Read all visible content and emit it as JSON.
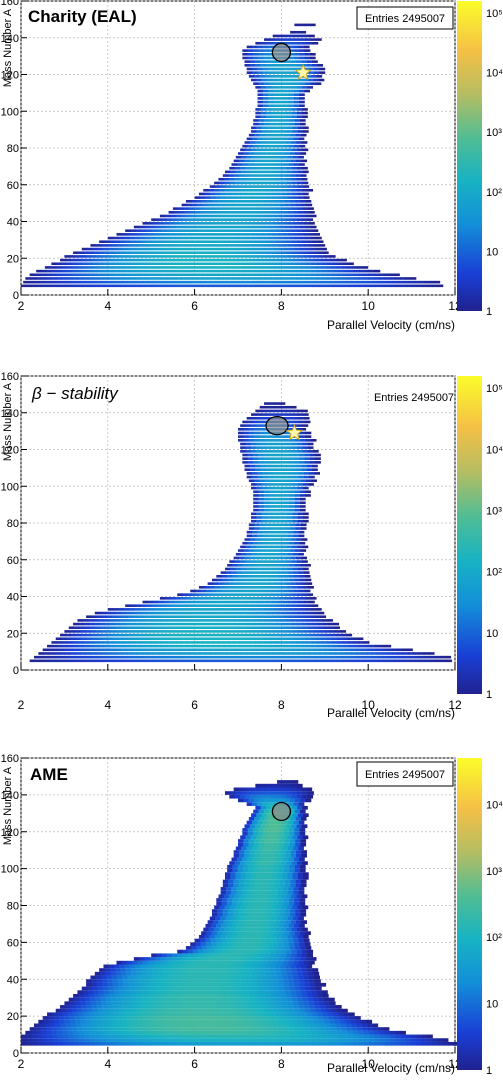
{
  "chart_data": [
    {
      "type": "heatmap",
      "title": "Charity (EAL)",
      "title_italic": false,
      "stats_label": "Entries 2495007",
      "xlabel": "Parallel Velocity (cm/ns)",
      "ylabel": "Mass Number A",
      "xlim": [
        2,
        12
      ],
      "ylim": [
        0,
        160
      ],
      "x_ticks": [
        "2",
        "4",
        "6",
        "8",
        "10",
        "12"
      ],
      "y_ticks": [
        "0",
        "20",
        "40",
        "60",
        "80",
        "100",
        "120",
        "140",
        "160"
      ],
      "z_scale": "log",
      "z_ticks": [
        "1",
        "10",
        "10²",
        "10³",
        "10⁴",
        "10⁵"
      ],
      "grid": true,
      "circle_marker": {
        "x": 8.0,
        "y": 132
      },
      "star_marker": {
        "x": 8.5,
        "y": 121
      },
      "rows": [
        [
          5,
          2.0,
          11.6,
          0.9
        ],
        [
          7,
          2.05,
          11.6,
          1.4
        ],
        [
          9,
          2.1,
          11.0,
          1.8
        ],
        [
          11,
          2.2,
          10.6,
          1.9
        ],
        [
          13,
          2.35,
          10.2,
          2.1
        ],
        [
          15,
          2.55,
          9.9,
          2.2
        ],
        [
          17,
          2.7,
          9.6,
          2.2
        ],
        [
          19,
          2.9,
          9.4,
          2.2
        ],
        [
          21,
          3.0,
          9.2,
          2.2
        ],
        [
          23,
          3.2,
          9.0,
          2.1
        ],
        [
          25,
          3.4,
          8.95,
          2.1
        ],
        [
          27,
          3.6,
          8.9,
          2.0
        ],
        [
          29,
          3.8,
          8.85,
          2.0
        ],
        [
          31,
          4.0,
          8.8,
          1.9
        ],
        [
          33,
          4.2,
          8.8,
          1.9
        ],
        [
          35,
          4.4,
          8.75,
          1.9
        ],
        [
          37,
          4.6,
          8.75,
          1.9
        ],
        [
          39,
          4.8,
          8.7,
          1.9
        ],
        [
          41,
          5.0,
          8.7,
          1.9
        ],
        [
          43,
          5.2,
          8.7,
          1.9
        ],
        [
          45,
          5.4,
          8.7,
          1.9
        ],
        [
          47,
          5.5,
          8.65,
          1.9
        ],
        [
          49,
          5.7,
          8.65,
          1.9
        ],
        [
          51,
          5.8,
          8.65,
          1.9
        ],
        [
          53,
          6.0,
          8.6,
          1.9
        ],
        [
          55,
          6.1,
          8.6,
          1.9
        ],
        [
          57,
          6.2,
          8.6,
          1.9
        ],
        [
          59,
          6.35,
          8.6,
          1.9
        ],
        [
          61,
          6.45,
          8.6,
          1.9
        ],
        [
          63,
          6.55,
          8.55,
          1.9
        ],
        [
          65,
          6.65,
          8.55,
          1.9
        ],
        [
          67,
          6.7,
          8.55,
          1.9
        ],
        [
          69,
          6.8,
          8.5,
          1.9
        ],
        [
          71,
          6.85,
          8.5,
          1.9
        ],
        [
          73,
          6.9,
          8.5,
          1.9
        ],
        [
          75,
          6.95,
          8.5,
          1.9
        ],
        [
          77,
          7.0,
          8.5,
          1.9
        ],
        [
          79,
          7.05,
          8.5,
          1.9
        ],
        [
          81,
          7.1,
          8.5,
          1.9
        ],
        [
          83,
          7.15,
          8.5,
          1.9
        ],
        [
          85,
          7.2,
          8.5,
          1.9
        ],
        [
          87,
          7.25,
          8.5,
          1.9
        ],
        [
          89,
          7.3,
          8.5,
          1.9
        ],
        [
          91,
          7.3,
          8.5,
          1.9
        ],
        [
          93,
          7.35,
          8.5,
          1.9
        ],
        [
          95,
          7.35,
          8.5,
          1.9
        ],
        [
          97,
          7.4,
          8.5,
          1.9
        ],
        [
          99,
          7.4,
          8.5,
          1.9
        ],
        [
          101,
          7.4,
          8.5,
          1.9
        ],
        [
          103,
          7.45,
          8.5,
          1.9
        ],
        [
          105,
          7.45,
          8.5,
          1.9
        ],
        [
          107,
          7.45,
          8.5,
          1.9
        ],
        [
          109,
          7.45,
          8.5,
          1.9
        ],
        [
          111,
          7.45,
          8.6,
          1.9
        ],
        [
          113,
          7.4,
          8.7,
          1.9
        ],
        [
          115,
          7.35,
          8.8,
          1.9
        ],
        [
          117,
          7.3,
          8.9,
          1.9
        ],
        [
          119,
          7.25,
          8.9,
          1.9
        ],
        [
          121,
          7.2,
          8.95,
          1.9
        ],
        [
          123,
          7.2,
          8.95,
          1.8
        ],
        [
          125,
          7.15,
          8.9,
          1.8
        ],
        [
          127,
          7.15,
          8.8,
          1.7
        ],
        [
          129,
          7.1,
          8.7,
          1.6
        ],
        [
          131,
          7.1,
          8.7,
          1.5
        ],
        [
          133,
          7.1,
          8.6,
          1.3
        ],
        [
          135,
          7.2,
          8.6,
          1.1
        ],
        [
          137,
          7.4,
          8.8,
          0.9
        ],
        [
          139,
          7.6,
          8.8,
          0.6
        ],
        [
          141,
          7.8,
          8.7,
          0.3
        ],
        [
          143,
          8.2,
          8.5,
          0.1
        ],
        [
          147,
          8.3,
          8.7,
          0.1
        ]
      ]
    },
    {
      "type": "heatmap",
      "title": "β − stability",
      "title_italic": true,
      "stats_label": "Entries 2495007",
      "xlabel": "Parallel Velocity (cm/ns)",
      "ylabel": "Mass Number A",
      "xlim": [
        2,
        12
      ],
      "ylim": [
        0,
        160
      ],
      "x_ticks": [
        "2",
        "4",
        "6",
        "8",
        "10",
        "12"
      ],
      "y_ticks": [
        "0",
        "20",
        "40",
        "60",
        "80",
        "100",
        "120",
        "140",
        "160"
      ],
      "z_scale": "log",
      "z_ticks": [
        "1",
        "10",
        "10²",
        "10³",
        "10⁴",
        "10⁵"
      ],
      "grid": true,
      "circle_marker": {
        "x": 7.9,
        "y": 133
      },
      "star_marker": {
        "x": 8.3,
        "y": 129
      },
      "rows": [
        [
          5,
          2.2,
          11.9,
          0.9
        ],
        [
          7,
          2.3,
          11.8,
          1.4
        ],
        [
          9,
          2.4,
          11.4,
          1.8
        ],
        [
          11,
          2.5,
          10.9,
          1.9
        ],
        [
          13,
          2.6,
          10.4,
          2.1
        ],
        [
          15,
          2.7,
          10.0,
          2.2
        ],
        [
          17,
          2.8,
          9.8,
          2.2
        ],
        [
          19,
          2.9,
          9.6,
          2.2
        ],
        [
          21,
          3.0,
          9.4,
          2.2
        ],
        [
          23,
          3.1,
          9.3,
          2.1
        ],
        [
          25,
          3.2,
          9.2,
          2.1
        ],
        [
          27,
          3.3,
          9.1,
          2.0
        ],
        [
          29,
          3.5,
          9.0,
          2.0
        ],
        [
          31,
          3.7,
          8.9,
          1.9
        ],
        [
          33,
          4.0,
          8.8,
          1.9
        ],
        [
          35,
          4.4,
          8.8,
          1.9
        ],
        [
          37,
          4.8,
          8.7,
          1.9
        ],
        [
          39,
          5.2,
          8.7,
          1.9
        ],
        [
          41,
          5.6,
          8.7,
          1.9
        ],
        [
          43,
          5.9,
          8.65,
          1.9
        ],
        [
          45,
          6.1,
          8.65,
          1.9
        ],
        [
          47,
          6.3,
          8.6,
          1.9
        ],
        [
          49,
          6.4,
          8.6,
          1.9
        ],
        [
          51,
          6.5,
          8.6,
          1.9
        ],
        [
          53,
          6.6,
          8.6,
          1.9
        ],
        [
          55,
          6.7,
          8.55,
          1.9
        ],
        [
          57,
          6.75,
          8.55,
          1.9
        ],
        [
          59,
          6.8,
          8.55,
          1.9
        ],
        [
          61,
          6.9,
          8.5,
          1.9
        ],
        [
          63,
          6.95,
          8.5,
          1.9
        ],
        [
          65,
          7.0,
          8.5,
          1.9
        ],
        [
          67,
          7.05,
          8.5,
          1.9
        ],
        [
          69,
          7.1,
          8.5,
          1.9
        ],
        [
          71,
          7.15,
          8.5,
          1.9
        ],
        [
          73,
          7.2,
          8.5,
          1.9
        ],
        [
          75,
          7.2,
          8.5,
          1.9
        ],
        [
          77,
          7.25,
          8.5,
          1.9
        ],
        [
          79,
          7.25,
          8.5,
          1.9
        ],
        [
          81,
          7.3,
          8.5,
          1.9
        ],
        [
          83,
          7.3,
          8.5,
          1.9
        ],
        [
          85,
          7.3,
          8.5,
          1.9
        ],
        [
          87,
          7.35,
          8.5,
          1.9
        ],
        [
          89,
          7.35,
          8.5,
          1.9
        ],
        [
          91,
          7.35,
          8.5,
          1.9
        ],
        [
          93,
          7.35,
          8.5,
          1.9
        ],
        [
          95,
          7.35,
          8.55,
          1.9
        ],
        [
          97,
          7.35,
          8.6,
          1.9
        ],
        [
          99,
          7.3,
          8.6,
          1.9
        ],
        [
          101,
          7.3,
          8.65,
          1.9
        ],
        [
          103,
          7.25,
          8.7,
          1.9
        ],
        [
          105,
          7.2,
          8.75,
          1.9
        ],
        [
          107,
          7.2,
          8.8,
          1.9
        ],
        [
          109,
          7.15,
          8.8,
          1.9
        ],
        [
          111,
          7.15,
          8.8,
          1.9
        ],
        [
          113,
          7.1,
          8.8,
          1.9
        ],
        [
          115,
          7.1,
          8.8,
          1.9
        ],
        [
          117,
          7.1,
          8.8,
          1.9
        ],
        [
          119,
          7.05,
          8.75,
          1.9
        ],
        [
          121,
          7.05,
          8.7,
          1.8
        ],
        [
          123,
          7.05,
          8.7,
          1.8
        ],
        [
          125,
          7.0,
          8.7,
          1.7
        ],
        [
          127,
          7.0,
          8.6,
          1.6
        ],
        [
          129,
          7.0,
          8.6,
          1.5
        ],
        [
          131,
          7.0,
          8.5,
          1.3
        ],
        [
          133,
          7.05,
          8.5,
          1.1
        ],
        [
          135,
          7.1,
          8.6,
          0.9
        ],
        [
          137,
          7.2,
          8.6,
          0.7
        ],
        [
          139,
          7.3,
          8.6,
          0.5
        ],
        [
          141,
          7.4,
          8.5,
          0.3
        ],
        [
          143,
          7.5,
          8.3,
          0.1
        ],
        [
          145,
          7.6,
          8.0,
          0.1
        ]
      ]
    },
    {
      "type": "heatmap",
      "title": "AME",
      "title_italic": false,
      "stats_label": "Entries 2495007",
      "xlabel": "Parallel Velocity (cm/ns)",
      "ylabel": "Mass Number A",
      "xlim": [
        2,
        12
      ],
      "ylim": [
        0,
        160
      ],
      "x_ticks": [
        "2",
        "4",
        "6",
        "8",
        "10",
        "12"
      ],
      "y_ticks": [
        "0",
        "20",
        "40",
        "60",
        "80",
        "100",
        "120",
        "140",
        "160"
      ],
      "z_scale": "log",
      "z_ticks": [
        "1",
        "10",
        "10²",
        "10³",
        "10⁴"
      ],
      "grid": true,
      "circle_marker": {
        "x": 8.0,
        "y": 131
      },
      "rows": [
        [
          5,
          2.0,
          12.0,
          1.6
        ],
        [
          7,
          2.0,
          11.8,
          2.0
        ],
        [
          9,
          2.0,
          11.4,
          2.2
        ],
        [
          11,
          2.1,
          10.8,
          2.4
        ],
        [
          13,
          2.2,
          10.4,
          2.5
        ],
        [
          15,
          2.3,
          10.2,
          2.5
        ],
        [
          17,
          2.4,
          10.0,
          2.5
        ],
        [
          19,
          2.5,
          9.8,
          2.5
        ],
        [
          21,
          2.6,
          9.6,
          2.4
        ],
        [
          23,
          2.8,
          9.4,
          2.4
        ],
        [
          25,
          2.9,
          9.3,
          2.3
        ],
        [
          27,
          3.0,
          9.2,
          2.3
        ],
        [
          29,
          3.1,
          9.1,
          2.3
        ],
        [
          31,
          3.2,
          9.0,
          2.3
        ],
        [
          33,
          3.3,
          9.0,
          2.2
        ],
        [
          35,
          3.4,
          8.9,
          2.2
        ],
        [
          37,
          3.5,
          8.9,
          2.2
        ],
        [
          39,
          3.5,
          8.85,
          2.2
        ],
        [
          41,
          3.6,
          8.8,
          2.2
        ],
        [
          43,
          3.7,
          8.8,
          2.2
        ],
        [
          45,
          3.8,
          8.75,
          2.2
        ],
        [
          47,
          3.9,
          8.7,
          2.2
        ],
        [
          49,
          4.2,
          8.7,
          2.2
        ],
        [
          51,
          4.6,
          8.7,
          2.2
        ],
        [
          53,
          5.0,
          8.65,
          2.2
        ],
        [
          55,
          5.6,
          8.65,
          2.2
        ],
        [
          57,
          5.8,
          8.6,
          2.2
        ],
        [
          59,
          5.9,
          8.6,
          2.2
        ],
        [
          61,
          6.0,
          8.6,
          2.2
        ],
        [
          63,
          6.1,
          8.55,
          2.2
        ],
        [
          65,
          6.15,
          8.55,
          2.2
        ],
        [
          67,
          6.2,
          8.5,
          2.2
        ],
        [
          69,
          6.25,
          8.5,
          2.2
        ],
        [
          71,
          6.3,
          8.5,
          2.2
        ],
        [
          73,
          6.35,
          8.5,
          2.2
        ],
        [
          75,
          6.4,
          8.5,
          2.2
        ],
        [
          77,
          6.4,
          8.5,
          2.2
        ],
        [
          79,
          6.45,
          8.5,
          2.2
        ],
        [
          81,
          6.5,
          8.5,
          2.2
        ],
        [
          83,
          6.5,
          8.5,
          2.2
        ],
        [
          85,
          6.55,
          8.5,
          2.2
        ],
        [
          87,
          6.6,
          8.5,
          2.2
        ],
        [
          89,
          6.6,
          8.5,
          2.2
        ],
        [
          91,
          6.65,
          8.5,
          2.2
        ],
        [
          93,
          6.65,
          8.5,
          2.2
        ],
        [
          95,
          6.7,
          8.5,
          2.2
        ],
        [
          97,
          6.7,
          8.5,
          2.2
        ],
        [
          99,
          6.75,
          8.5,
          2.2
        ],
        [
          101,
          6.75,
          8.5,
          2.2
        ],
        [
          103,
          6.8,
          8.5,
          2.3
        ],
        [
          105,
          6.85,
          8.5,
          2.3
        ],
        [
          107,
          6.9,
          8.5,
          2.3
        ],
        [
          109,
          6.9,
          8.5,
          2.3
        ],
        [
          111,
          6.95,
          8.5,
          2.4
        ],
        [
          113,
          7.0,
          8.5,
          2.4
        ],
        [
          115,
          7.0,
          8.5,
          2.5
        ],
        [
          117,
          7.05,
          8.5,
          2.5
        ],
        [
          119,
          7.1,
          8.5,
          2.5
        ],
        [
          121,
          7.1,
          8.5,
          2.6
        ],
        [
          123,
          7.15,
          8.5,
          2.6
        ],
        [
          125,
          7.2,
          8.5,
          2.6
        ],
        [
          127,
          7.25,
          8.5,
          2.6
        ],
        [
          129,
          7.3,
          8.5,
          2.6
        ],
        [
          131,
          7.35,
          8.5,
          2.6
        ],
        [
          133,
          7.4,
          8.5,
          2.4
        ],
        [
          135,
          7.2,
          8.5,
          2.0
        ],
        [
          137,
          7.0,
          8.6,
          1.5
        ],
        [
          139,
          6.8,
          8.6,
          1.2
        ],
        [
          141,
          6.7,
          8.7,
          0.8
        ],
        [
          143,
          6.9,
          8.6,
          0.5
        ],
        [
          145,
          7.4,
          8.4,
          0.2
        ],
        [
          147,
          7.9,
          8.3,
          0.1
        ]
      ]
    }
  ]
}
